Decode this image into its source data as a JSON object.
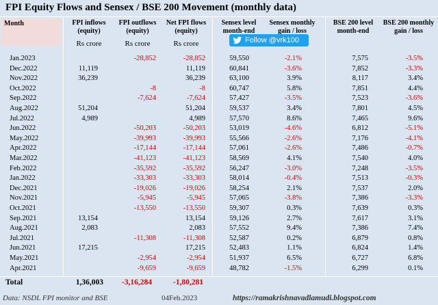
{
  "title": "FPI Equity Flows  and Sensex / BSE 200 Movement (monthly data)",
  "headers": {
    "month": "Month",
    "inflows": [
      "FPI inflows",
      "(equity)"
    ],
    "outflows": [
      "FPI outflows",
      "(equity)"
    ],
    "net": [
      "Net FPI flows",
      "(equity)"
    ],
    "sensex_level": [
      "Sensex level",
      "month-end"
    ],
    "sensex_gain": [
      "Sensex monthly",
      "gain / loss"
    ],
    "bse_level": [
      "BSE 200 level",
      "month-end"
    ],
    "bse_gain": [
      "BSE 200 monthly",
      "gain / loss"
    ]
  },
  "units": {
    "inflows": "Rs crore",
    "outflows": "Rs crore",
    "net": "Rs crore"
  },
  "follow_button": "Follow @vrk100",
  "chart_data": {
    "type": "table",
    "columns": [
      "Month",
      "FPI inflows (equity)",
      "FPI outflows (equity)",
      "Net FPI flows (equity)",
      "Sensex level month-end",
      "Sensex monthly gain / loss",
      "BSE 200 level month-end",
      "BSE 200 monthly gain / loss"
    ],
    "rows": [
      {
        "month": "Jan.2023",
        "inflow": "",
        "outflow": "-28,852",
        "net": "-28,852",
        "sensex": "59,550",
        "sgain": "-2.1%",
        "bse": "7,575",
        "bgain": "-3.5%"
      },
      {
        "month": "Dec.2022",
        "inflow": "11,119",
        "outflow": "",
        "net": "11,119",
        "sensex": "60,841",
        "sgain": "-3.6%",
        "bse": "7,852",
        "bgain": "-3.3%"
      },
      {
        "month": "Nov.2022",
        "inflow": "36,239",
        "outflow": "",
        "net": "36,239",
        "sensex": "63,100",
        "sgain": "3.9%",
        "bse": "8,117",
        "bgain": "3.4%"
      },
      {
        "month": "Oct.2022",
        "inflow": "",
        "outflow": "-8",
        "net": "-8",
        "sensex": "60,747",
        "sgain": "5.8%",
        "bse": "7,851",
        "bgain": "4.4%"
      },
      {
        "month": "Sep.2022",
        "inflow": "",
        "outflow": "-7,624",
        "net": "-7,624",
        "sensex": "57,427",
        "sgain": "-3.5%",
        "bse": "7,523",
        "bgain": "-3.6%"
      },
      {
        "month": "Aug.2022",
        "inflow": "51,204",
        "outflow": "",
        "net": "51,204",
        "sensex": "59,537",
        "sgain": "3.4%",
        "bse": "7,801",
        "bgain": "4.5%"
      },
      {
        "month": "Jul.2022",
        "inflow": "4,989",
        "outflow": "",
        "net": "4,989",
        "sensex": "57,570",
        "sgain": "8.6%",
        "bse": "7,465",
        "bgain": "9.6%"
      },
      {
        "month": "Jun.2022",
        "inflow": "",
        "outflow": "-50,203",
        "net": "-50,203",
        "sensex": "53,019",
        "sgain": "-4.6%",
        "bse": "6,812",
        "bgain": "-5.1%"
      },
      {
        "month": "May.2022",
        "inflow": "",
        "outflow": "-39,993",
        "net": "-39,993",
        "sensex": "55,566",
        "sgain": "-2.6%",
        "bse": "7,176",
        "bgain": "-4.1%"
      },
      {
        "month": "Apr.2022",
        "inflow": "",
        "outflow": "-17,144",
        "net": "-17,144",
        "sensex": "57,061",
        "sgain": "-2.6%",
        "bse": "7,486",
        "bgain": "-0.7%"
      },
      {
        "month": "Mar.2022",
        "inflow": "",
        "outflow": "-41,123",
        "net": "-41,123",
        "sensex": "58,569",
        "sgain": "4.1%",
        "bse": "7,540",
        "bgain": "4.0%"
      },
      {
        "month": "Feb.2022",
        "inflow": "",
        "outflow": "-35,592",
        "net": "-35,592",
        "sensex": "56,247",
        "sgain": "-3.0%",
        "bse": "7,248",
        "bgain": "-3.5%"
      },
      {
        "month": "Jan.2022",
        "inflow": "",
        "outflow": "-33,303",
        "net": "-33,303",
        "sensex": "58,014",
        "sgain": "-0.4%",
        "bse": "7,513",
        "bgain": "-0.3%"
      },
      {
        "month": "Dec.2021",
        "inflow": "",
        "outflow": "-19,026",
        "net": "-19,026",
        "sensex": "58,254",
        "sgain": "2.1%",
        "bse": "7,537",
        "bgain": "2.0%"
      },
      {
        "month": "Nov.2021",
        "inflow": "",
        "outflow": "-5,945",
        "net": "-5,945",
        "sensex": "57,065",
        "sgain": "-3.8%",
        "bse": "7,386",
        "bgain": "-3.3%"
      },
      {
        "month": "Oct.2021",
        "inflow": "",
        "outflow": "-13,550",
        "net": "-13,550",
        "sensex": "59,307",
        "sgain": "0.3%",
        "bse": "7,639",
        "bgain": "0.3%"
      },
      {
        "month": "Sep.2021",
        "inflow": "13,154",
        "outflow": "",
        "net": "13,154",
        "sensex": "59,126",
        "sgain": "2.7%",
        "bse": "7,617",
        "bgain": "3.1%"
      },
      {
        "month": "Aug.2021",
        "inflow": "2,083",
        "outflow": "",
        "net": "2,083",
        "sensex": "57,552",
        "sgain": "9.4%",
        "bse": "7,386",
        "bgain": "7.4%"
      },
      {
        "month": "Jul.2021",
        "inflow": "",
        "outflow": "-11,308",
        "net": "-11,308",
        "sensex": "52,587",
        "sgain": "0.2%",
        "bse": "6,879",
        "bgain": "0.8%"
      },
      {
        "month": "Jun.2021",
        "inflow": "17,215",
        "outflow": "",
        "net": "17,215",
        "sensex": "52,483",
        "sgain": "1.1%",
        "bse": "6,824",
        "bgain": "1.4%"
      },
      {
        "month": "May.2021",
        "inflow": "",
        "outflow": "-2,954",
        "net": "-2,954",
        "sensex": "51,937",
        "sgain": "6.5%",
        "bse": "6,727",
        "bgain": "6.8%"
      },
      {
        "month": "Apr.2021",
        "inflow": "",
        "outflow": "-9,659",
        "net": "-9,659",
        "sensex": "48,782",
        "sgain": "-1.5%",
        "bse": "6,299",
        "bgain": "0.1%"
      }
    ]
  },
  "total": {
    "label": "Total",
    "inflow": "1,36,003",
    "outflow": "-3,16,284",
    "net": "-1,80,281"
  },
  "footer": {
    "source": "Data: NSDL FPI monitor and BSE",
    "date": "04Feb.2023",
    "url": "https://ramakrishnavadlamudi.blogspot.com"
  },
  "colors": {
    "background": "#dbe5f1",
    "negative": "#e00000",
    "twitter": "#1da1f2",
    "month_header": "#f2dcdb"
  }
}
